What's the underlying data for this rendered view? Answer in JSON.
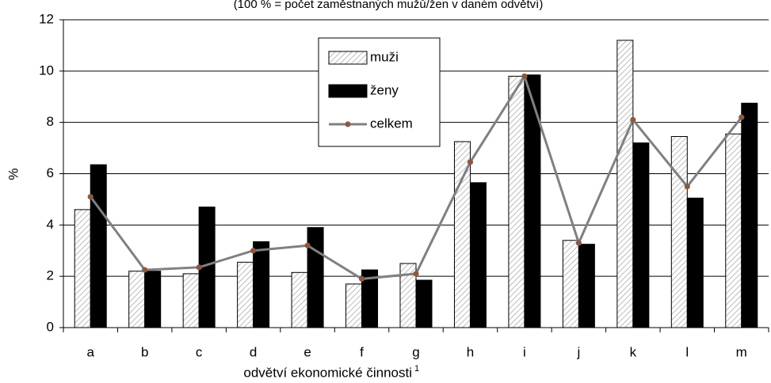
{
  "chart_data": {
    "type": "bar",
    "title": "(100 % = počet zaměstnaných mužů/žen v daném odvětví)",
    "y_label": "%",
    "x_label": "odvětví ekonomické činnosti",
    "x_label_note": "1",
    "categories": [
      "a",
      "b",
      "c",
      "d",
      "e",
      "f",
      "g",
      "h",
      "i",
      "j",
      "k",
      "l",
      "m"
    ],
    "series": [
      {
        "name": "muži",
        "type": "bar",
        "color": "#a6a6a6",
        "hatch": true,
        "values": [
          4.6,
          2.2,
          2.1,
          2.55,
          2.15,
          1.7,
          2.5,
          7.25,
          9.8,
          3.4,
          11.2,
          7.45,
          7.55
        ]
      },
      {
        "name": "ženy",
        "type": "bar",
        "color": "#000000",
        "values": [
          6.35,
          2.2,
          4.7,
          3.35,
          3.9,
          2.25,
          1.85,
          5.65,
          9.85,
          3.25,
          7.2,
          5.05,
          8.75
        ]
      },
      {
        "name": "celkem",
        "type": "line",
        "color": "#808080",
        "marker_color": "#a0522d",
        "values": [
          5.1,
          2.25,
          2.35,
          3.0,
          3.2,
          1.9,
          2.1,
          6.45,
          9.8,
          3.3,
          8.1,
          5.5,
          8.2
        ]
      }
    ],
    "ylim": [
      0,
      12
    ],
    "yticks": [
      0,
      2,
      4,
      6,
      8,
      10,
      12
    ],
    "grid": true
  }
}
